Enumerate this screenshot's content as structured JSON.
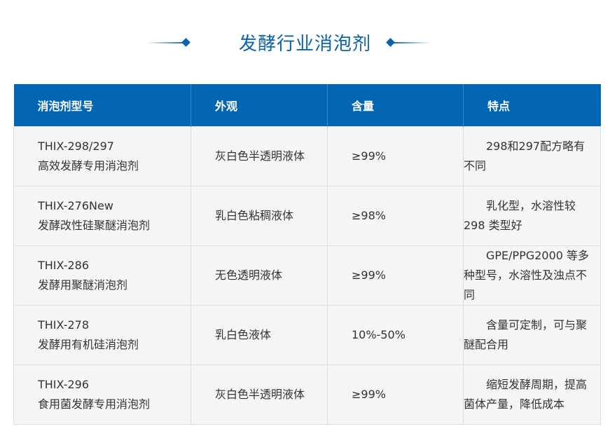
{
  "title": "发酵行业消泡剂",
  "colors": {
    "accent": "#0466b2",
    "row_bg": "#f5f5f5"
  },
  "table": {
    "headers": [
      "消泡剂型号",
      "外观",
      "含量",
      "特点"
    ],
    "rows": [
      {
        "model": "THIX-298/297",
        "name": "高效发酵专用消泡剂",
        "appearance": "灰白色半透明液体",
        "content": "≥99%",
        "feature": "　　298和297配方略有\n不同"
      },
      {
        "model": "THIX-276New",
        "name": "发酵改性硅聚醚消泡剂",
        "appearance": "乳白色粘稠液体",
        "content": "≥98%",
        "feature": "　　乳化型，水溶性较\n298 类型好"
      },
      {
        "model": "THIX-286",
        "name": "发酵用聚醚消泡剂",
        "appearance": "无色透明液体",
        "content": "≥99%",
        "feature": "　　GPE/PPG2000 等多\n种型号，水溶性及浊点不\n同"
      },
      {
        "model": "THIX-278",
        "name": "发酵用有机硅消泡剂",
        "appearance": "乳白色液体",
        "content": "10%-50%",
        "feature": "　　含量可定制，可与聚\n醚配合用"
      },
      {
        "model": "THIX-296",
        "name": "食用菌发酵专用消泡剂",
        "appearance": "灰白色半透明液体",
        "content": "≥99%",
        "feature": "　　缩短发酵周期，提高\n菌体产量，降低成本"
      }
    ]
  }
}
